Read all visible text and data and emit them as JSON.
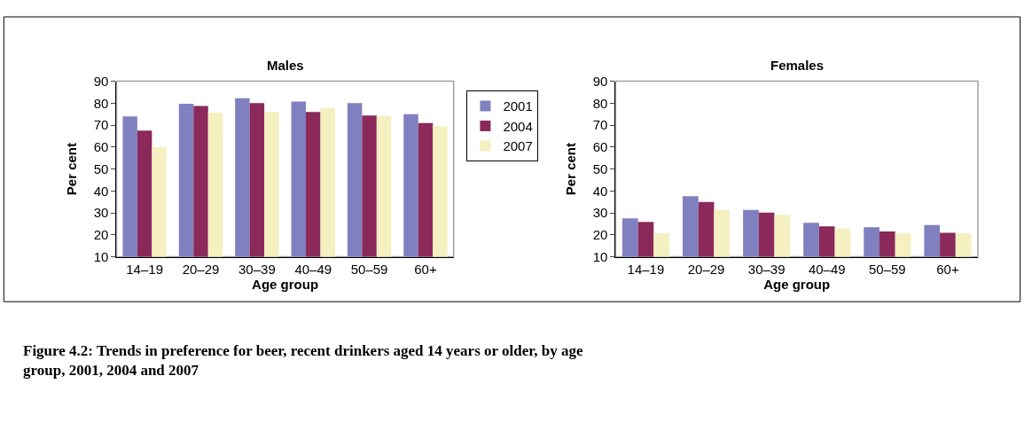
{
  "chart_data": [
    {
      "type": "bar",
      "title": "Males",
      "xlabel": "Age group",
      "ylabel": "Per cent",
      "categories": [
        "14–19",
        "20–29",
        "30–39",
        "40–49",
        "50–59",
        "60+"
      ],
      "series": [
        {
          "name": "2001",
          "color": "#8080c0",
          "values": [
            74,
            79.7,
            82.3,
            80.7,
            80,
            75
          ]
        },
        {
          "name": "2004",
          "color": "#8b2a5a",
          "values": [
            67.5,
            78.7,
            80,
            76,
            74.4,
            71
          ]
        },
        {
          "name": "2007",
          "color": "#f5f0c0",
          "values": [
            60,
            75.7,
            76,
            77.7,
            74.1,
            69.4
          ]
        }
      ],
      "ylim": [
        10,
        90
      ],
      "yticks": [
        10,
        20,
        30,
        40,
        50,
        60,
        70,
        80,
        90
      ],
      "grid": false,
      "legend": "right",
      "annotations": [
        "Figure 4.2: Trends in preference for beer, recent drinkers aged 14 years or older, by age group, 2001, 2004 and 2007"
      ]
    },
    {
      "type": "bar",
      "title": "Females",
      "xlabel": "Age group",
      "ylabel": "Per cent",
      "categories": [
        "14–19",
        "20–29",
        "30–39",
        "40–49",
        "50–59",
        "60+"
      ],
      "series": [
        {
          "name": "2001",
          "color": "#8080c0",
          "values": [
            27.5,
            37.6,
            31.4,
            25.5,
            23.5,
            24.5
          ]
        },
        {
          "name": "2004",
          "color": "#8b2a5a",
          "values": [
            25.9,
            35,
            30.1,
            23.9,
            21.6,
            20.9
          ]
        },
        {
          "name": "2007",
          "color": "#f5f0c0",
          "values": [
            20.7,
            31.4,
            29.1,
            22.9,
            20.7,
            20.7
          ]
        }
      ],
      "ylim": [
        10,
        90
      ],
      "yticks": [
        10,
        20,
        30,
        40,
        50,
        60,
        70,
        80,
        90
      ],
      "grid": false,
      "legend": false
    }
  ]
}
